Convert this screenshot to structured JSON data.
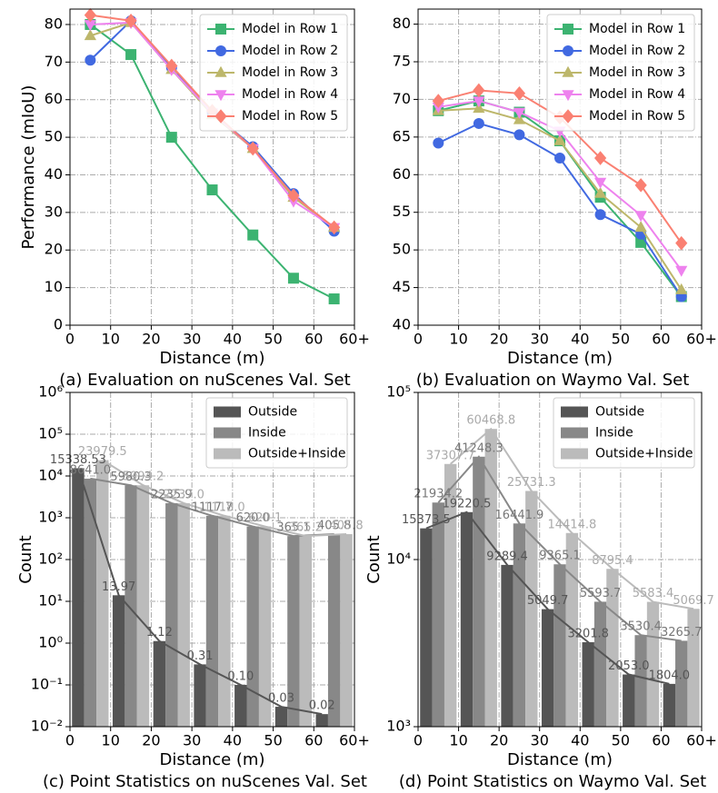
{
  "chart_data": [
    {
      "type": "line",
      "caption": "(a) Evaluation on nuScenes Val. Set",
      "x_label": "Distance (m)",
      "y_label": "Performance (mIoU)",
      "x": [
        5,
        15,
        25,
        35,
        45,
        55,
        65
      ],
      "xlim": [
        0,
        70
      ],
      "xticks": [
        0,
        10,
        20,
        30,
        40,
        50,
        60,
        {
          "value": 70,
          "label": "60+"
        }
      ],
      "ylim": [
        0,
        84.1
      ],
      "yticks": [
        0,
        10,
        20,
        30,
        40,
        50,
        60,
        70,
        80
      ],
      "grid": true,
      "legend": "upper right",
      "series": [
        {
          "name": "Model in Row 1",
          "color": "#3cb371",
          "marker": "square",
          "values": [
            80,
            72,
            50,
            36,
            24,
            12.5,
            7
          ]
        },
        {
          "name": "Model in Row 2",
          "color": "#4169e1",
          "marker": "circle",
          "values": [
            70.5,
            81,
            68.5,
            56.5,
            47.5,
            35,
            25
          ]
        },
        {
          "name": "Model in Row 3",
          "color": "#bdb76b",
          "marker": "triangle",
          "values": [
            77,
            80.5,
            68,
            56,
            47,
            34,
            26
          ]
        },
        {
          "name": "Model in Row 4",
          "color": "#ee82ee",
          "marker": "triangle-down",
          "values": [
            80,
            80.5,
            68,
            56.5,
            47,
            33,
            26
          ]
        },
        {
          "name": "Model in Row 5",
          "color": "#fa8072",
          "marker": "diamond",
          "values": [
            82.5,
            81,
            69,
            57,
            47,
            34.5,
            26
          ]
        }
      ]
    },
    {
      "type": "line",
      "caption": "(b) Evaluation on Waymo Val. Set",
      "x_label": "Distance (m)",
      "x": [
        5,
        15,
        25,
        35,
        45,
        55,
        65
      ],
      "xlim": [
        0,
        70
      ],
      "xticks": [
        0,
        10,
        20,
        30,
        40,
        50,
        60,
        {
          "value": 70,
          "label": "60+"
        }
      ],
      "ylim": [
        40,
        82
      ],
      "yticks": [
        40,
        45,
        50,
        55,
        60,
        65,
        70,
        75,
        80
      ],
      "grid": true,
      "legend": "upper right",
      "series": [
        {
          "name": "Model in Row 1",
          "color": "#3cb371",
          "marker": "square",
          "values": [
            68.5,
            69.8,
            68.3,
            64.5,
            57,
            51,
            43.8
          ]
        },
        {
          "name": "Model in Row 2",
          "color": "#4169e1",
          "marker": "circle",
          "values": [
            64.2,
            66.8,
            65.3,
            62.2,
            54.7,
            52.1,
            43.8
          ]
        },
        {
          "name": "Model in Row 3",
          "color": "#bdb76b",
          "marker": "triangle",
          "values": [
            68.5,
            68.8,
            67.3,
            64.5,
            57.5,
            53,
            44.7
          ]
        },
        {
          "name": "Model in Row 4",
          "color": "#ee82ee",
          "marker": "triangle-down",
          "values": [
            69,
            69.8,
            68.3,
            65.8,
            59,
            54.6,
            47.3
          ]
        },
        {
          "name": "Model in Row 5",
          "color": "#fa8072",
          "marker": "diamond",
          "values": [
            69.8,
            71.2,
            70.8,
            67.6,
            62.2,
            58.6,
            50.9
          ]
        }
      ]
    },
    {
      "type": "bar",
      "caption": "(c) Point Statistics on nuScenes Val. Set",
      "x_label": "Distance (m)",
      "y_label": "Count",
      "x": [
        5,
        15,
        25,
        35,
        45,
        55,
        65
      ],
      "xlim": [
        0,
        70
      ],
      "xticks": [
        0,
        10,
        20,
        30,
        40,
        50,
        60,
        {
          "value": 70,
          "label": "60+"
        }
      ],
      "log_y": true,
      "ylim": [
        0.01,
        1000000
      ],
      "yticks": [
        {
          "value": 0.01,
          "label": "10⁻²"
        },
        {
          "value": 0.1,
          "label": "10⁻¹"
        },
        {
          "value": 1,
          "label": "10⁰"
        },
        {
          "value": 10,
          "label": "10¹"
        },
        {
          "value": 100,
          "label": "10²"
        },
        {
          "value": 1000,
          "label": "10³"
        },
        {
          "value": 10000,
          "label": "10⁴"
        },
        {
          "value": 100000,
          "label": "10⁵"
        },
        {
          "value": 1000000,
          "label": "10⁶"
        }
      ],
      "grid": true,
      "legend": "upper right",
      "series": [
        {
          "name": "Outside",
          "color": "#555555",
          "values": [
            15338.53,
            13.97,
            1.12,
            0.31,
            0.1,
            0.03,
            0.02
          ],
          "value_labels": [
            "15338.53",
            "13.97",
            "1.12",
            "0.31",
            "0.10",
            "0.03",
            "0.02"
          ]
        },
        {
          "name": "Inside",
          "color": "#888888",
          "values": [
            8641.0,
            5980.3,
            2235.9,
            1117.7,
            620.0,
            365.1,
            405.8
          ],
          "value_labels": [
            "8641.0",
            "5980.3",
            "2235.9",
            "1117.7",
            "620.0",
            "365.1",
            "405.8"
          ]
        },
        {
          "name": "Outside+Inside",
          "color": "#bbbbbb",
          "values": [
            23979.5,
            5994.2,
            2237.0,
            1118.0,
            620.1,
            365.2,
            405.8
          ],
          "value_labels": [
            "23979.5",
            "5994.2",
            "2237.0",
            "1118.0",
            "620.1",
            "365.2",
            "405.8"
          ]
        }
      ]
    },
    {
      "type": "bar",
      "caption": "(d) Point Statistics on Waymo Val. Set",
      "x_label": "Distance (m)",
      "y_label": "Count",
      "x": [
        5,
        15,
        25,
        35,
        45,
        55,
        65
      ],
      "xlim": [
        0,
        70
      ],
      "xticks": [
        0,
        10,
        20,
        30,
        40,
        50,
        60,
        {
          "value": 70,
          "label": "60+"
        }
      ],
      "log_y": true,
      "ylim": [
        1000,
        100000
      ],
      "yticks": [
        {
          "value": 1000,
          "label": "10³"
        },
        {
          "value": 10000,
          "label": "10⁴"
        },
        {
          "value": 100000,
          "label": "10⁵"
        }
      ],
      "grid": true,
      "legend": "upper right",
      "series": [
        {
          "name": "Outside",
          "color": "#555555",
          "values": [
            15373.5,
            19220.5,
            9289.4,
            5049.7,
            3201.8,
            2053.0,
            1804.0
          ],
          "value_labels": [
            "15373.5",
            "19220.5",
            "9289.4",
            "5049.7",
            "3201.8",
            "2053.0",
            "1804.0"
          ]
        },
        {
          "name": "Inside",
          "color": "#888888",
          "values": [
            21934.2,
            41248.3,
            16441.9,
            9365.1,
            5593.7,
            3530.4,
            3265.7
          ],
          "value_labels": [
            "21934.2",
            "41248.3",
            "16441.9",
            "9365.1",
            "5593.7",
            "3530.4",
            "3265.7"
          ]
        },
        {
          "name": "Outside+Inside",
          "color": "#bbbbbb",
          "values": [
            37307.7,
            60468.8,
            25731.3,
            14414.8,
            8795.4,
            5583.4,
            5069.7
          ],
          "value_labels": [
            "37307.7",
            "60468.8",
            "25731.3",
            "14414.8",
            "8795.4",
            "5583.4",
            "5069.7"
          ]
        }
      ]
    }
  ]
}
